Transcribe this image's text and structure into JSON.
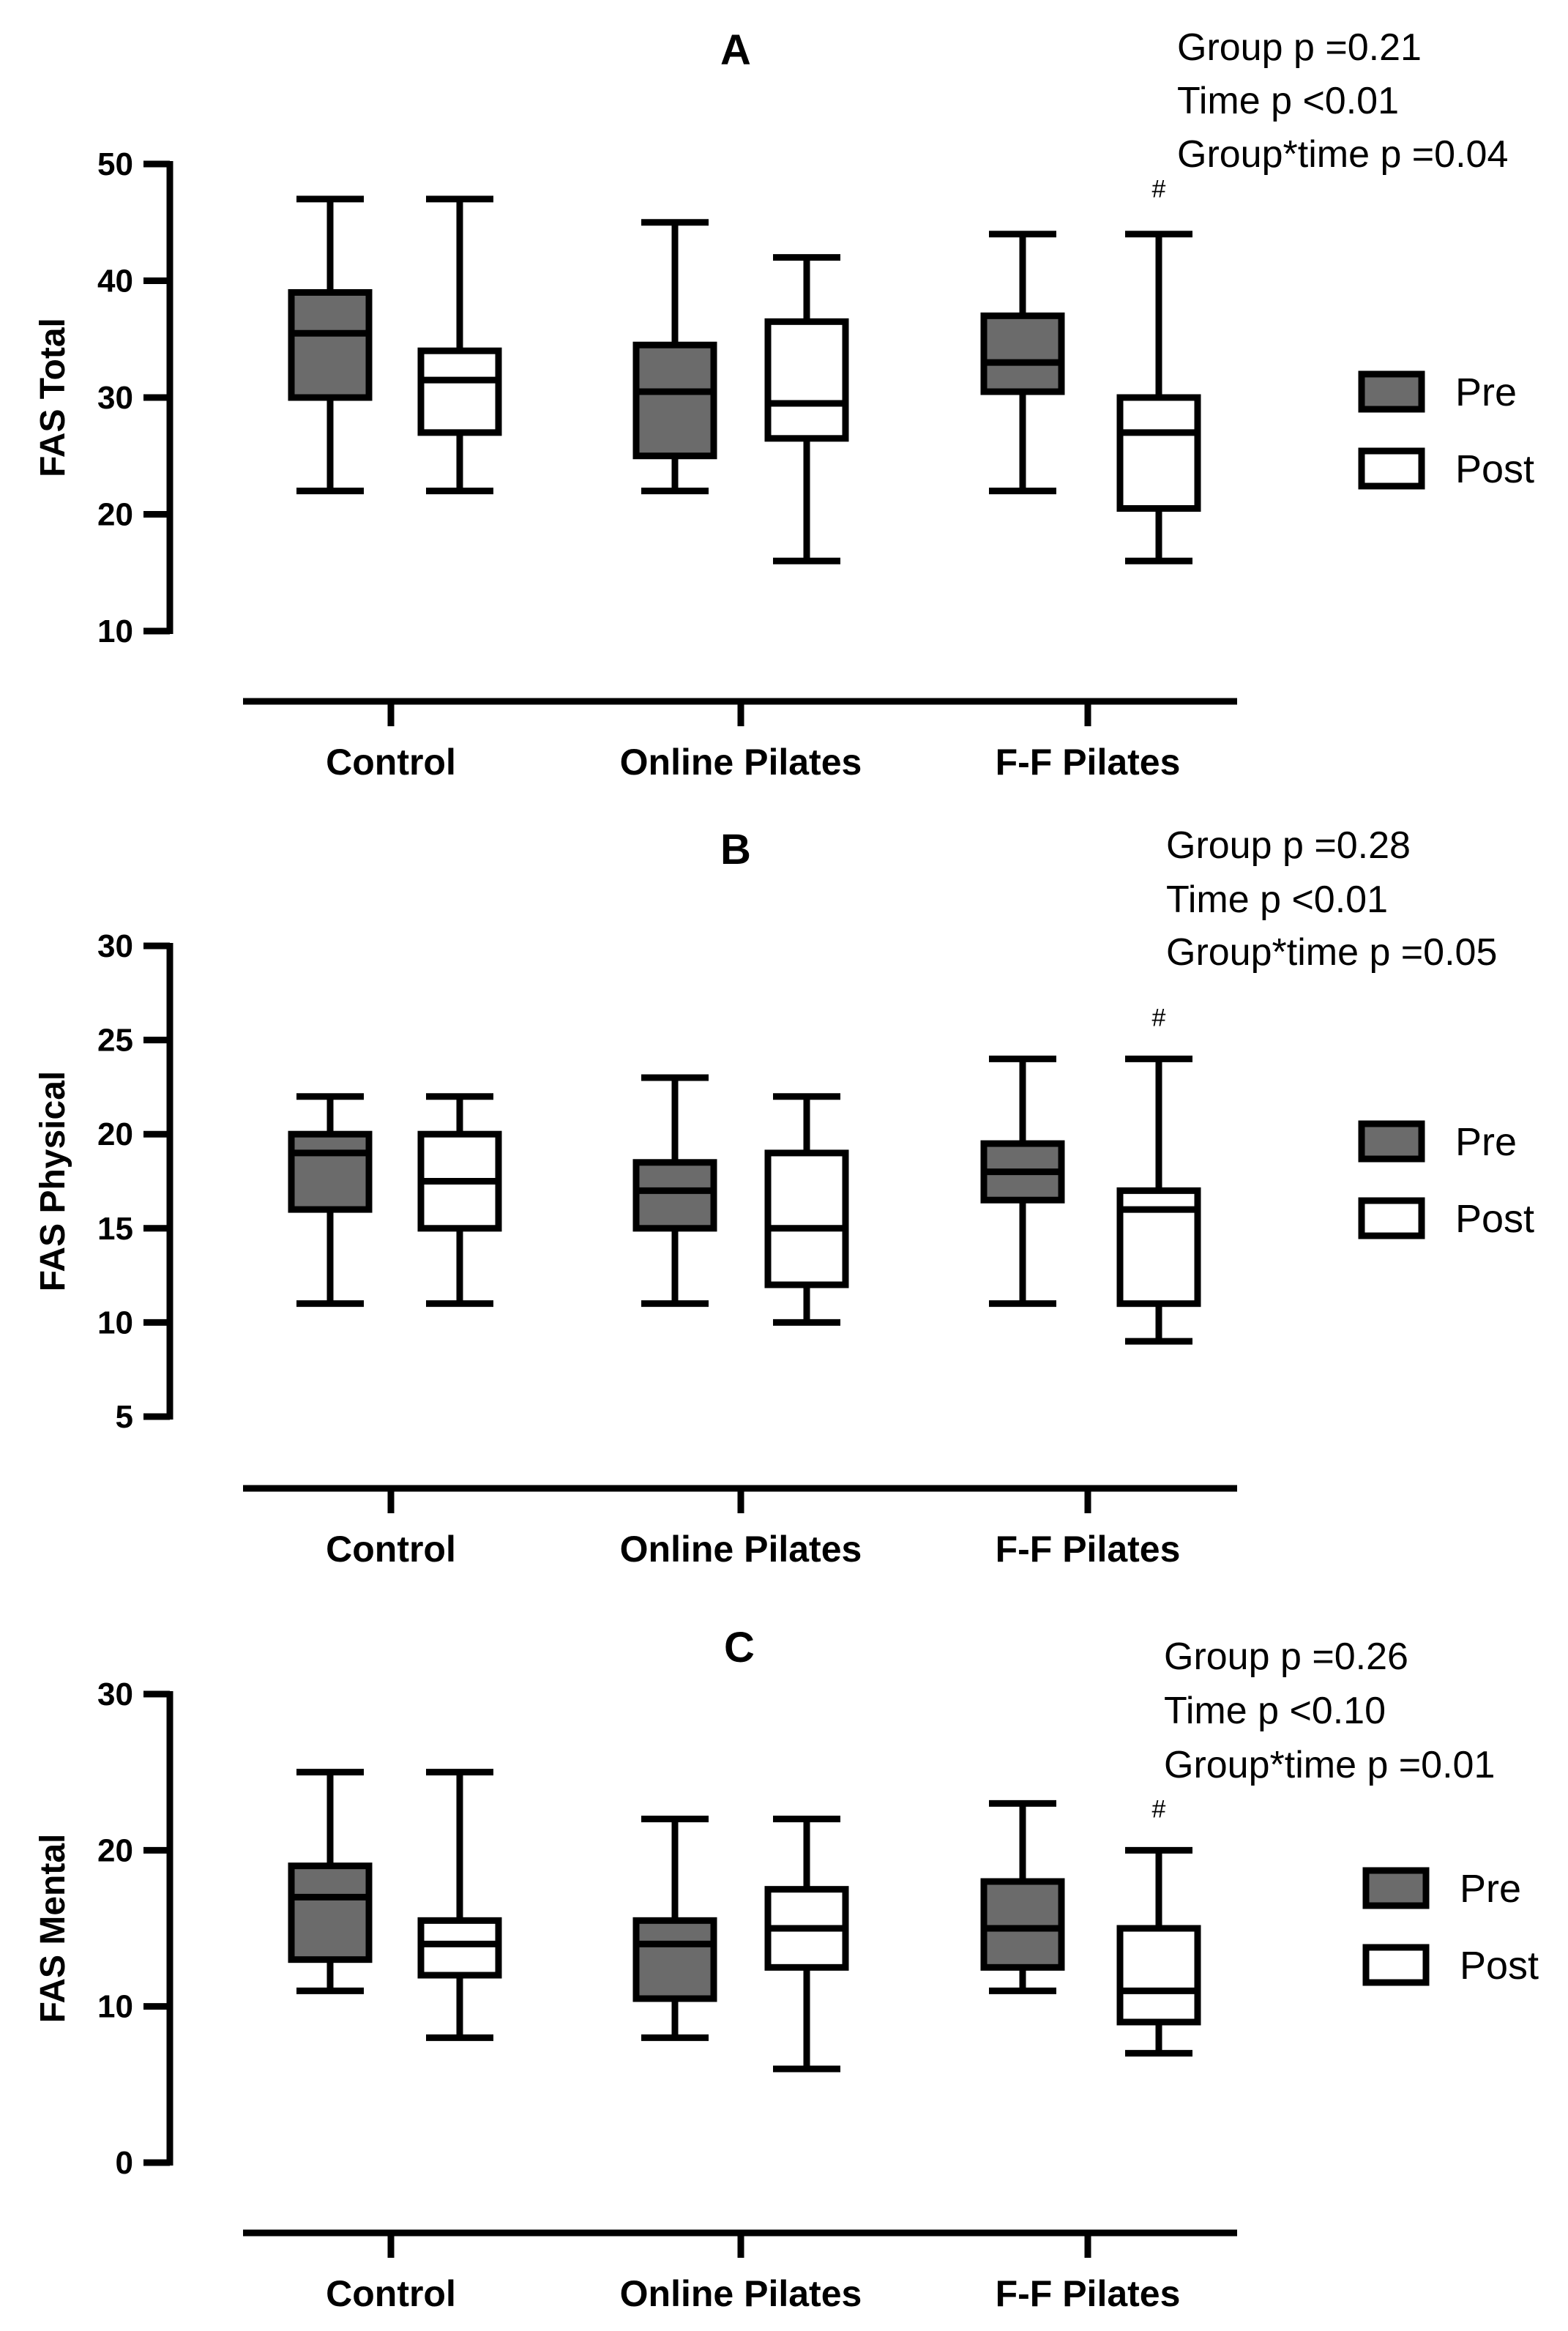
{
  "colors": {
    "pre_fill": "#6b6b6b",
    "post_fill": "#ffffff",
    "stroke": "#000000"
  },
  "chart_data": [
    {
      "type": "boxplot",
      "title": "A",
      "ylabel": "FAS Total",
      "ylim": [
        10,
        50
      ],
      "yticks": [
        "10",
        "20",
        "30",
        "40",
        "50"
      ],
      "categories": [
        "Control",
        "Online Pilates",
        "F-F Pilates"
      ],
      "legend": {
        "placement": "right",
        "entries": [
          "Pre",
          "Post"
        ]
      },
      "stats": [
        "Group p =0.21",
        "Time p <0.01",
        "Group*time p =0.04"
      ],
      "series": [
        {
          "name": "Pre",
          "boxes": [
            {
              "min": 22,
              "q1": 30,
              "median": 35.5,
              "q3": 39,
              "max": 47
            },
            {
              "min": 22,
              "q1": 25,
              "median": 30.5,
              "q3": 34.5,
              "max": 45
            },
            {
              "min": 22,
              "q1": 30.5,
              "median": 33,
              "q3": 37,
              "max": 44
            }
          ]
        },
        {
          "name": "Post",
          "boxes": [
            {
              "min": 22,
              "q1": 27,
              "median": 31.5,
              "q3": 34,
              "max": 47
            },
            {
              "min": 16,
              "q1": 26.5,
              "median": 29.5,
              "q3": 36.5,
              "max": 42
            },
            {
              "min": 16,
              "q1": 20.5,
              "median": 27,
              "q3": 30,
              "max": 44
            }
          ]
        }
      ],
      "annotations": [
        {
          "text": "#",
          "category": "F-F Pilates",
          "series": "Post"
        }
      ]
    },
    {
      "type": "boxplot",
      "title": "B",
      "ylabel": "FAS Physical",
      "ylim": [
        5,
        30
      ],
      "yticks": [
        "5",
        "10",
        "15",
        "20",
        "25",
        "30"
      ],
      "categories": [
        "Control",
        "Online Pilates",
        "F-F Pilates"
      ],
      "legend": {
        "placement": "right",
        "entries": [
          "Pre",
          "Post"
        ]
      },
      "stats": [
        "Group p =0.28",
        "Time p <0.01",
        "Group*time p =0.05"
      ],
      "series": [
        {
          "name": "Pre",
          "boxes": [
            {
              "min": 11,
              "q1": 16,
              "median": 19,
              "q3": 20,
              "max": 22
            },
            {
              "min": 11,
              "q1": 15,
              "median": 17,
              "q3": 18.5,
              "max": 23
            },
            {
              "min": 11,
              "q1": 16.5,
              "median": 18,
              "q3": 19.5,
              "max": 24
            }
          ]
        },
        {
          "name": "Post",
          "boxes": [
            {
              "min": 11,
              "q1": 15,
              "median": 17.5,
              "q3": 20,
              "max": 22
            },
            {
              "min": 10,
              "q1": 12,
              "median": 15,
              "q3": 19,
              "max": 22
            },
            {
              "min": 9,
              "q1": 11,
              "median": 16,
              "q3": 17,
              "max": 24
            }
          ]
        }
      ],
      "annotations": [
        {
          "text": "#",
          "category": "F-F Pilates",
          "series": "Post"
        }
      ]
    },
    {
      "type": "boxplot",
      "title": "C",
      "ylabel": "FAS Mental",
      "ylim": [
        0,
        30
      ],
      "yticks": [
        "0",
        "10",
        "20",
        "30"
      ],
      "categories": [
        "Control",
        "Online Pilates",
        "F-F Pilates"
      ],
      "legend": {
        "placement": "right",
        "entries": [
          "Pre",
          "Post"
        ]
      },
      "stats": [
        "Group p =0.26",
        "Time p <0.10",
        "Group*time p =0.01"
      ],
      "series": [
        {
          "name": "Pre",
          "boxes": [
            {
              "min": 11,
              "q1": 13,
              "median": 17,
              "q3": 19,
              "max": 25
            },
            {
              "min": 8,
              "q1": 10.5,
              "median": 14,
              "q3": 15.5,
              "max": 22
            },
            {
              "min": 11,
              "q1": 12.5,
              "median": 15,
              "q3": 18,
              "max": 23
            }
          ]
        },
        {
          "name": "Post",
          "boxes": [
            {
              "min": 8,
              "q1": 12,
              "median": 14,
              "q3": 15.5,
              "max": 25
            },
            {
              "min": 6,
              "q1": 12.5,
              "median": 15,
              "q3": 17.5,
              "max": 22
            },
            {
              "min": 7,
              "q1": 9,
              "median": 11,
              "q3": 15,
              "max": 20
            }
          ]
        }
      ],
      "annotations": [
        {
          "text": "#",
          "category": "F-F Pilates",
          "series": "Post"
        }
      ]
    }
  ]
}
